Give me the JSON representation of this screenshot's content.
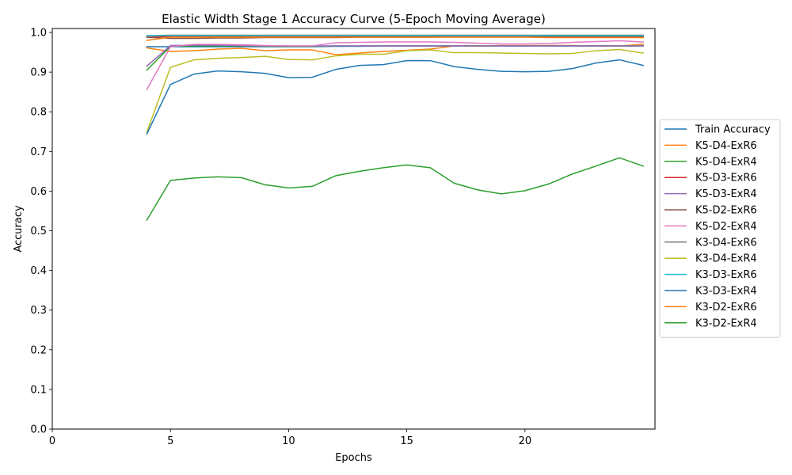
{
  "chart_data": {
    "type": "line",
    "title": "Elastic Width Stage 1 Accuracy Curve (5-Epoch Moving Average)",
    "xlabel": "Epochs",
    "ylabel": "Accuracy",
    "xlim": [
      0,
      25.5
    ],
    "ylim": [
      0.0,
      1.01
    ],
    "xticks": [
      0,
      5,
      10,
      15,
      20
    ],
    "yticks": [
      0.0,
      0.1,
      0.2,
      0.3,
      0.4,
      0.5,
      0.6,
      0.7,
      0.8,
      0.9,
      1.0
    ],
    "grid": false,
    "legend_position": "outside-right",
    "x": [
      4,
      5,
      6,
      7,
      8,
      9,
      10,
      11,
      12,
      13,
      14,
      15,
      16,
      17,
      18,
      19,
      20,
      21,
      22,
      23,
      24,
      25
    ],
    "series": [
      {
        "name": "Train Accuracy",
        "color": "#1f77b4",
        "values": [
          0.964,
          0.964,
          0.964,
          0.964,
          0.964,
          0.964,
          0.964,
          0.964,
          0.965,
          0.965,
          0.966,
          0.966,
          0.966,
          0.966,
          0.966,
          0.966,
          0.966,
          0.966,
          0.966,
          0.966,
          0.966,
          0.966
        ]
      },
      {
        "name": "K5-D4-ExR6",
        "color": "#ff7f0e",
        "values": [
          0.961,
          0.952,
          0.954,
          0.958,
          0.96,
          0.954,
          0.956,
          0.956,
          0.944,
          0.948,
          0.952,
          0.955,
          0.958,
          0.966,
          0.966,
          0.967,
          0.967,
          0.967,
          0.967,
          0.966,
          0.966,
          0.97
        ]
      },
      {
        "name": "K5-D4-ExR4",
        "color": "#2ca02c",
        "values": [
          0.905,
          0.965,
          0.966,
          0.966,
          0.966,
          0.965,
          0.965,
          0.965,
          0.966,
          0.966,
          0.966,
          0.966,
          0.966,
          0.966,
          0.966,
          0.966,
          0.966,
          0.966,
          0.966,
          0.966,
          0.966,
          0.966
        ]
      },
      {
        "name": "K5-D3-ExR6",
        "color": "#d62728",
        "values": [
          0.988,
          0.99,
          0.99,
          0.99,
          0.99,
          0.99,
          0.99,
          0.99,
          0.99,
          0.99,
          0.99,
          0.99,
          0.99,
          0.99,
          0.99,
          0.99,
          0.99,
          0.99,
          0.99,
          0.99,
          0.99,
          0.99
        ]
      },
      {
        "name": "K5-D3-ExR4",
        "color": "#9467bd",
        "values": [
          0.915,
          0.967,
          0.968,
          0.968,
          0.967,
          0.966,
          0.966,
          0.966,
          0.966,
          0.966,
          0.966,
          0.966,
          0.966,
          0.966,
          0.966,
          0.966,
          0.966,
          0.966,
          0.966,
          0.966,
          0.966,
          0.966
        ]
      },
      {
        "name": "K5-D2-ExR6",
        "color": "#8c564b",
        "values": [
          0.988,
          0.985,
          0.985,
          0.986,
          0.986,
          0.987,
          0.987,
          0.987,
          0.987,
          0.988,
          0.988,
          0.988,
          0.988,
          0.989,
          0.989,
          0.989,
          0.989,
          0.989,
          0.989,
          0.989,
          0.989,
          0.989
        ]
      },
      {
        "name": "K5-D2-ExR4",
        "color": "#e377c2",
        "values": [
          0.856,
          0.964,
          0.97,
          0.97,
          0.969,
          0.967,
          0.966,
          0.966,
          0.974,
          0.975,
          0.976,
          0.976,
          0.976,
          0.975,
          0.973,
          0.971,
          0.971,
          0.972,
          0.975,
          0.977,
          0.979,
          0.976
        ]
      },
      {
        "name": "K3-D4-ExR6",
        "color": "#7f7f7f",
        "values": [
          0.992,
          0.993,
          0.993,
          0.993,
          0.993,
          0.993,
          0.993,
          0.993,
          0.993,
          0.993,
          0.993,
          0.993,
          0.993,
          0.993,
          0.993,
          0.993,
          0.993,
          0.993,
          0.993,
          0.993,
          0.993,
          0.993
        ]
      },
      {
        "name": "K3-D4-ExR4",
        "color": "#bcbd22",
        "values": [
          0.749,
          0.912,
          0.931,
          0.935,
          0.937,
          0.94,
          0.932,
          0.931,
          0.941,
          0.945,
          0.945,
          0.954,
          0.956,
          0.949,
          0.949,
          0.948,
          0.947,
          0.946,
          0.947,
          0.954,
          0.957,
          0.948
        ]
      },
      {
        "name": "K3-D3-ExR6",
        "color": "#17becf",
        "values": [
          0.992,
          0.992,
          0.992,
          0.992,
          0.992,
          0.992,
          0.992,
          0.992,
          0.992,
          0.992,
          0.992,
          0.992,
          0.992,
          0.992,
          0.992,
          0.992,
          0.992,
          0.992,
          0.992,
          0.992,
          0.992,
          0.992
        ]
      },
      {
        "name": "K3-D3-ExR4",
        "color": "#1f77b4",
        "values": [
          0.744,
          0.869,
          0.895,
          0.903,
          0.901,
          0.897,
          0.886,
          0.887,
          0.907,
          0.917,
          0.919,
          0.929,
          0.929,
          0.914,
          0.907,
          0.902,
          0.901,
          0.902,
          0.909,
          0.923,
          0.931,
          0.917
        ]
      },
      {
        "name": "K3-D2-ExR6",
        "color": "#ff7f0e",
        "values": [
          0.98,
          0.988,
          0.988,
          0.988,
          0.988,
          0.988,
          0.988,
          0.988,
          0.988,
          0.988,
          0.988,
          0.988,
          0.988,
          0.988,
          0.988,
          0.988,
          0.988,
          0.987,
          0.987,
          0.987,
          0.987,
          0.987
        ]
      },
      {
        "name": "K3-D2-ExR4",
        "color": "#2ca02c",
        "values": [
          0.527,
          0.627,
          0.633,
          0.636,
          0.634,
          0.616,
          0.608,
          0.612,
          0.639,
          0.65,
          0.659,
          0.666,
          0.659,
          0.62,
          0.603,
          0.593,
          0.601,
          0.618,
          0.643,
          0.663,
          0.684,
          0.663
        ]
      }
    ]
  }
}
